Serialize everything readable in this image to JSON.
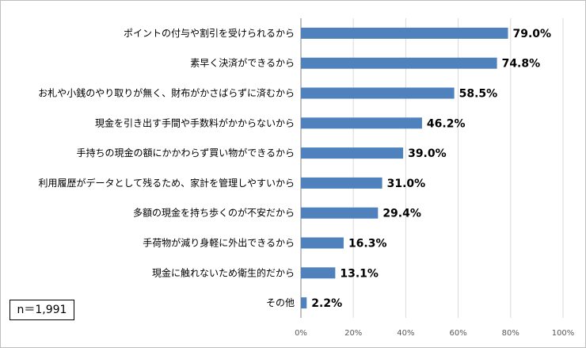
{
  "chart_data": {
    "type": "bar",
    "orientation": "horizontal",
    "categories": [
      "ポイントの付与や割引を受けられるから",
      "素早く決済ができるから",
      "お札や小銭のやり取りが無く、財布がかさばらずに済むから",
      "現金を引き出す手間や手数料がかからないから",
      "手持ちの現金の額にかかわらず買い物ができるから",
      "利用履歴がデータとして残るため、家計を管理しやすいから",
      "多額の現金を持ち歩くのが不安だから",
      "手荷物が減り身軽に外出できるから",
      "現金に触れないため衛生的だから",
      "その他"
    ],
    "values": [
      79.0,
      74.8,
      58.5,
      46.2,
      39.0,
      31.0,
      29.4,
      16.3,
      13.1,
      2.2
    ],
    "value_labels": [
      "79.0%",
      "74.8%",
      "58.5%",
      "46.2%",
      "39.0%",
      "31.0%",
      "29.4%",
      "16.3%",
      "13.1%",
      "2.2%"
    ],
    "xlim": [
      0,
      100
    ],
    "x_ticks": [
      "0%",
      "20%",
      "40%",
      "60%",
      "80%",
      "100%"
    ],
    "grid": true,
    "bar_color": "#4f81bd"
  },
  "sample_note": "n＝1,991"
}
